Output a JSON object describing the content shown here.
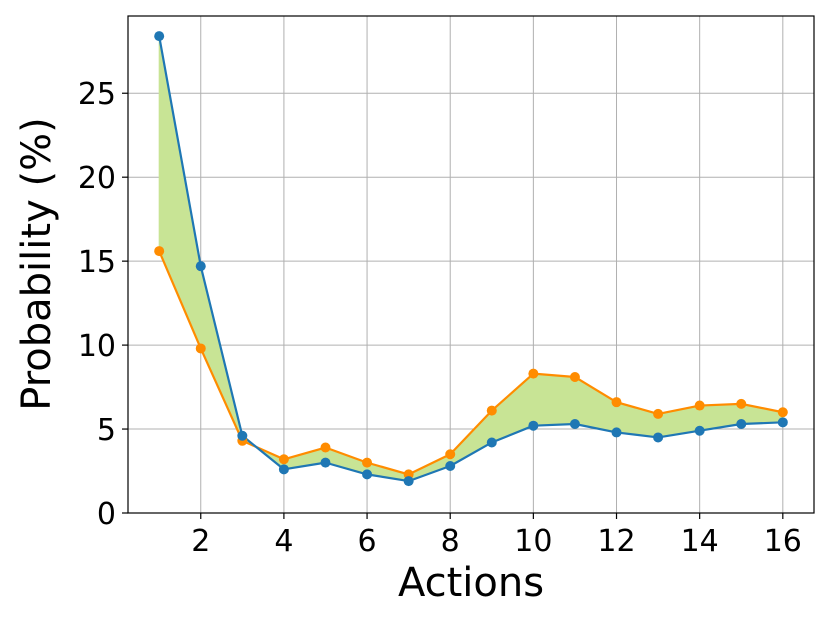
{
  "chart_data": {
    "type": "line",
    "title": "",
    "xlabel": "Actions",
    "ylabel": "Probability (%)",
    "xlim": [
      0.25,
      16.75
    ],
    "ylim": [
      0,
      29.6
    ],
    "x_ticks": [
      2,
      4,
      6,
      8,
      10,
      12,
      14,
      16
    ],
    "y_ticks": [
      0,
      5,
      10,
      15,
      20,
      25
    ],
    "grid": true,
    "legend": "none",
    "x": [
      1,
      2,
      3,
      4,
      5,
      6,
      7,
      8,
      9,
      10,
      11,
      12,
      13,
      14,
      15,
      16
    ],
    "series": [
      {
        "color": "#1f77b4",
        "values": [
          28.4,
          14.7,
          4.6,
          2.6,
          3.0,
          2.3,
          1.9,
          2.8,
          4.2,
          5.2,
          5.3,
          4.8,
          4.5,
          4.9,
          5.3,
          5.4
        ]
      },
      {
        "color": "#ff8c00",
        "values": [
          15.6,
          9.8,
          4.3,
          3.2,
          3.9,
          3.0,
          2.3,
          3.5,
          6.1,
          8.3,
          8.1,
          6.6,
          5.9,
          6.4,
          6.5,
          6.0
        ]
      }
    ],
    "fill_between_color": "#c8e495"
  }
}
